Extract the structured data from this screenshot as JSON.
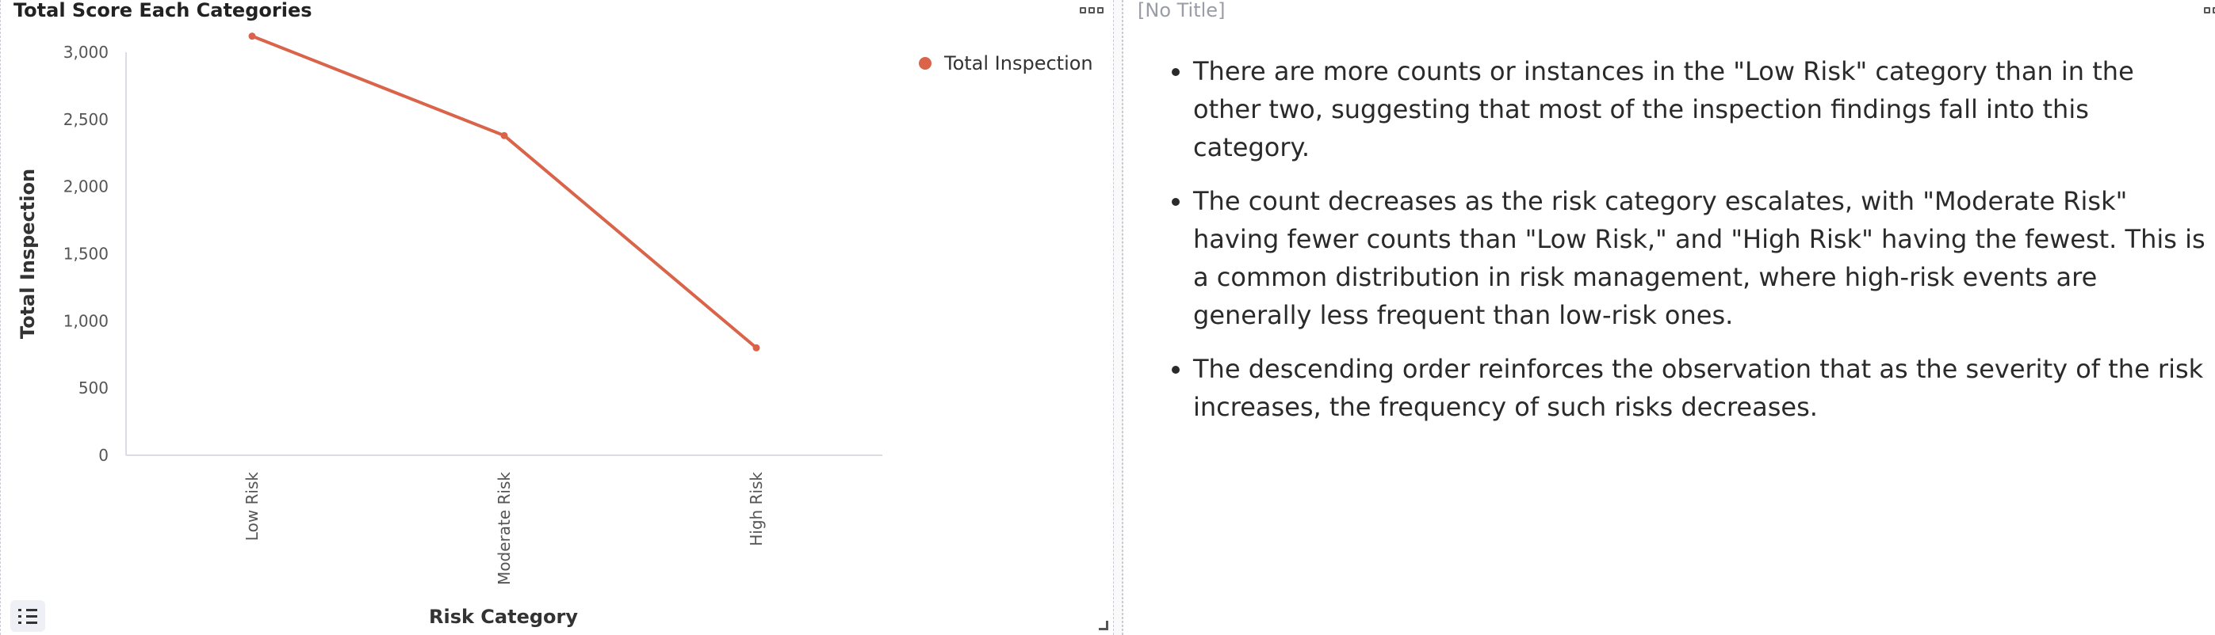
{
  "left_panel": {
    "title": "Total Score Each Categories"
  },
  "right_panel": {
    "title": "[No Title]",
    "insights": [
      "There are more counts or instances in the \"Low Risk\" category than in the other two, suggesting that most of the inspection findings fall into this category.",
      "The count decreases as the risk category escalates, with \"Moderate Risk\" having fewer counts than \"Low Risk,\" and \"High Risk\" having the fewest. This is a common distribution in risk management, where high-risk events are generally less frequent than low-risk ones.",
      "The descending order reinforces the observation that as the severity of the risk increases, the frequency of such risks decreases."
    ]
  },
  "colors": {
    "series": "#d9644a",
    "axis": "#dcdde2",
    "tick": "#555555"
  },
  "chart_data": {
    "type": "line",
    "categories": [
      "Low Risk",
      "Moderate Risk",
      "High Risk"
    ],
    "series": [
      {
        "name": "Total Inspection",
        "values": [
          3120,
          2380,
          800
        ]
      }
    ],
    "xlabel": "Risk Category",
    "ylabel": "Total Inspection",
    "ylim": [
      0,
      3000
    ],
    "yticks": [
      0,
      500,
      1000,
      1500,
      2000,
      2500,
      3000
    ],
    "ytick_labels": [
      "0",
      "500",
      "1,000",
      "1,500",
      "2,000",
      "2,500",
      "3,000"
    ],
    "grid": false,
    "legend_position": "top-right"
  }
}
